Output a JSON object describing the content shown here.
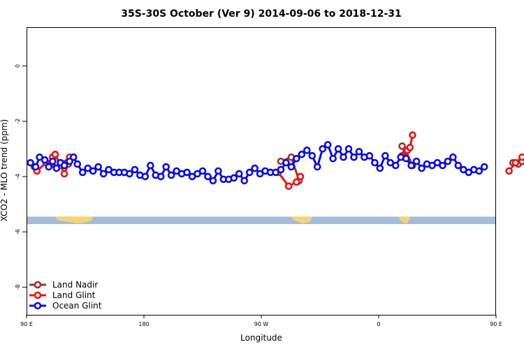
{
  "chart_data": {
    "type": "line",
    "title": "35S-30S October (Ver 9)   2014-09-06 to 2018-12-31",
    "xlabel": "Longitude",
    "ylabel": "XCO2 - MLO trend (ppm)",
    "xlim": [
      90,
      450
    ],
    "ylim": [
      -9,
      1.4
    ],
    "x_ticks": [
      {
        "value": 90,
        "label": "90 E"
      },
      {
        "value": 180,
        "label": "180"
      },
      {
        "value": 270,
        "label": "90 W"
      },
      {
        "value": 360,
        "label": "0"
      },
      {
        "value": 450,
        "label": "90 E"
      },
      {
        "value": 540,
        "label": "180"
      }
    ],
    "y_ticks": [
      {
        "value": 0,
        "label": "0"
      },
      {
        "value": -2,
        "label": "-2"
      },
      {
        "value": -4,
        "label": "-4"
      },
      {
        "value": -6,
        "label": "-6"
      },
      {
        "value": -8,
        "label": "-8"
      }
    ],
    "legend_position": "bottom-left",
    "grid": false,
    "map_strip": {
      "y_range": [
        -5.72,
        -5.45
      ],
      "ocean_color": "#a4bcd8",
      "land_color": "#f7d470",
      "land_segments": [
        [
          112,
          141
        ],
        [
          293,
          309
        ],
        [
          375,
          384
        ],
        [
          473,
          511
        ]
      ]
    },
    "series": [
      {
        "name": "Land Nadir",
        "color": "#9a3232",
        "points": [
          [
            96,
            -3.65
          ],
          [
            116,
            -3.5
          ],
          [
            126,
            -3.3
          ],
          [
            285,
            -3.45
          ],
          [
            293,
            -3.3
          ],
          [
            299,
            -4.15
          ],
          [
            463,
            -3.5
          ],
          [
            467,
            -3.55
          ],
          [
            470,
            -3.45
          ],
          [
            378,
            -2.9
          ],
          [
            381,
            -3.1
          ],
          [
            386,
            -3.6
          ]
        ]
      },
      {
        "name": "Land Glint",
        "color": "#ef1111",
        "points": [
          [
            98,
            -3.8
          ],
          [
            105,
            -3.5
          ],
          [
            108,
            -3.6
          ],
          [
            110,
            -3.3
          ],
          [
            112,
            -3.2
          ],
          [
            116,
            -3.6
          ],
          [
            119,
            -3.9
          ],
          [
            122,
            -3.55
          ],
          [
            123,
            -3.3
          ],
          [
            283,
            -3.85
          ],
          [
            291,
            -4.35
          ],
          [
            297,
            -4.2
          ],
          [
            300,
            -4.0
          ],
          [
            378,
            -3.25
          ],
          [
            382,
            -3.05
          ],
          [
            384,
            -2.95
          ],
          [
            386,
            -2.5
          ],
          [
            460,
            -3.8
          ],
          [
            465,
            -3.5
          ],
          [
            470,
            -3.3
          ],
          [
            474,
            -3.55
          ],
          [
            478,
            -3.9
          ],
          [
            481,
            -3.3
          ]
        ]
      },
      {
        "name": "Ocean Glint",
        "color": "#0b0be6",
        "points": [
          [
            93,
            -3.5
          ],
          [
            97,
            -3.65
          ],
          [
            100,
            -3.3
          ],
          [
            104,
            -3.4
          ],
          [
            107,
            -3.65
          ],
          [
            110,
            -3.45
          ],
          [
            113,
            -3.7
          ],
          [
            116,
            -3.5
          ],
          [
            119,
            -3.6
          ],
          [
            123,
            -3.45
          ],
          [
            126,
            -3.3
          ],
          [
            129,
            -3.55
          ],
          [
            133,
            -3.85
          ],
          [
            137,
            -3.7
          ],
          [
            141,
            -3.8
          ],
          [
            145,
            -3.65
          ],
          [
            149,
            -3.9
          ],
          [
            153,
            -3.75
          ],
          [
            157,
            -3.85
          ],
          [
            161,
            -3.85
          ],
          [
            165,
            -3.85
          ],
          [
            169,
            -3.9
          ],
          [
            173,
            -3.75
          ],
          [
            177,
            -3.95
          ],
          [
            181,
            -4.0
          ],
          [
            185,
            -3.6
          ],
          [
            189,
            -3.95
          ],
          [
            193,
            -4.0
          ],
          [
            197,
            -3.65
          ],
          [
            201,
            -3.95
          ],
          [
            205,
            -3.8
          ],
          [
            209,
            -3.9
          ],
          [
            213,
            -3.85
          ],
          [
            217,
            -4.0
          ],
          [
            221,
            -3.9
          ],
          [
            225,
            -3.8
          ],
          [
            229,
            -4.0
          ],
          [
            233,
            -4.15
          ],
          [
            237,
            -3.8
          ],
          [
            241,
            -4.1
          ],
          [
            245,
            -4.1
          ],
          [
            249,
            -4.05
          ],
          [
            253,
            -3.9
          ],
          [
            257,
            -4.15
          ],
          [
            261,
            -3.85
          ],
          [
            265,
            -3.7
          ],
          [
            269,
            -3.9
          ],
          [
            273,
            -3.8
          ],
          [
            277,
            -3.85
          ],
          [
            281,
            -3.85
          ],
          [
            285,
            -3.75
          ],
          [
            289,
            -3.5
          ],
          [
            293,
            -3.65
          ],
          [
            297,
            -3.35
          ],
          [
            301,
            -3.2
          ],
          [
            305,
            -3.05
          ],
          [
            309,
            -3.25
          ],
          [
            313,
            -3.65
          ],
          [
            317,
            -3.0
          ],
          [
            321,
            -2.85
          ],
          [
            325,
            -3.35
          ],
          [
            329,
            -3.0
          ],
          [
            333,
            -3.3
          ],
          [
            337,
            -3.0
          ],
          [
            341,
            -3.3
          ],
          [
            345,
            -3.1
          ],
          [
            349,
            -3.3
          ],
          [
            353,
            -3.25
          ],
          [
            357,
            -3.5
          ],
          [
            361,
            -3.7
          ],
          [
            365,
            -3.25
          ],
          [
            369,
            -3.5
          ],
          [
            373,
            -3.6
          ],
          [
            377,
            -3.3
          ],
          [
            381,
            -3.35
          ],
          [
            385,
            -3.6
          ],
          [
            389,
            -3.45
          ],
          [
            393,
            -3.7
          ],
          [
            397,
            -3.55
          ],
          [
            401,
            -3.6
          ],
          [
            405,
            -3.5
          ],
          [
            409,
            -3.6
          ],
          [
            413,
            -3.45
          ],
          [
            417,
            -3.3
          ],
          [
            421,
            -3.6
          ],
          [
            425,
            -3.75
          ],
          [
            429,
            -3.85
          ],
          [
            433,
            -3.75
          ],
          [
            437,
            -3.8
          ],
          [
            441,
            -3.65
          ]
        ]
      }
    ]
  }
}
